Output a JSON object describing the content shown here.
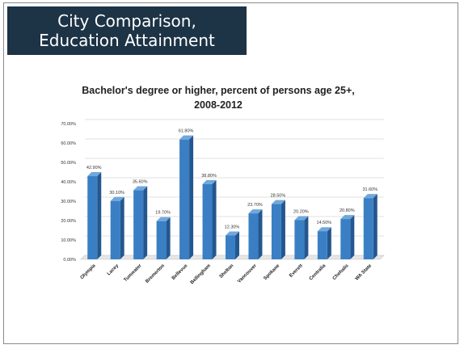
{
  "slide": {
    "title_line1": "City Comparison,",
    "title_line2": "Education Attainment"
  },
  "chart_data": {
    "type": "bar",
    "title_line1": "Bachelor's degree or higher, percent of persons age 25+,",
    "title_line2": "2008-2012",
    "categories": [
      "Olympia",
      "Lacey",
      "Tumwater",
      "Bremerton",
      "Bellevue",
      "Bellingham",
      "Shelton",
      "Vancouver",
      "Spokane",
      "Everett",
      "Centralia",
      "Chehalis",
      "WA State"
    ],
    "values": [
      42.9,
      30.1,
      35.6,
      19.7,
      61.8,
      38.8,
      12.3,
      23.7,
      28.5,
      20.2,
      14.5,
      20.8,
      31.6
    ],
    "value_labels": [
      "42.90%",
      "30.10%",
      "35.60%",
      "19.70%",
      "61.80%",
      "38.80%",
      "12.30%",
      "23.70%",
      "28.50%",
      "20.20%",
      "14.50%",
      "20.80%",
      "31.60%"
    ],
    "y_ticks": [
      0,
      10,
      20,
      30,
      40,
      50,
      60,
      70
    ],
    "y_tick_labels": [
      "0.00%",
      "10.00%",
      "20.00%",
      "30.00%",
      "40.00%",
      "50.00%",
      "60.00%",
      "70.00%"
    ],
    "ylim": [
      0,
      70
    ],
    "xlabel": "",
    "ylabel": "",
    "grid": true,
    "colors": {
      "bar_front": "#3a7fc4",
      "bar_side": "#24578f",
      "bar_top": "#6fa8dc",
      "grid": "#d9d9d9",
      "floor": "#bfbfbf"
    }
  }
}
